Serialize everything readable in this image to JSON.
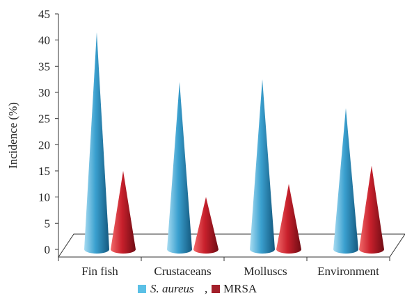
{
  "chart_data": {
    "type": "bar",
    "style": "3D cone",
    "categories": [
      "Fin fish",
      "Crustaceans",
      "Molluscs",
      "Environment"
    ],
    "series": [
      {
        "name": "S. aureus",
        "color": "#3aa0cf",
        "values": [
          41.5,
          32,
          32.5,
          27
        ]
      },
      {
        "name": "MRSA",
        "color": "#b8202a",
        "values": [
          15,
          10,
          12.5,
          16
        ]
      }
    ],
    "ylabel": "Incidence (%)",
    "xlabel": "",
    "title": "",
    "ylim": [
      0,
      45
    ],
    "yticks": [
      "0",
      "5",
      "10",
      "15",
      "20",
      "25",
      "30",
      "35",
      "40",
      "45"
    ],
    "legend": {
      "placement": "bottom",
      "separator": ","
    },
    "grid": false
  }
}
